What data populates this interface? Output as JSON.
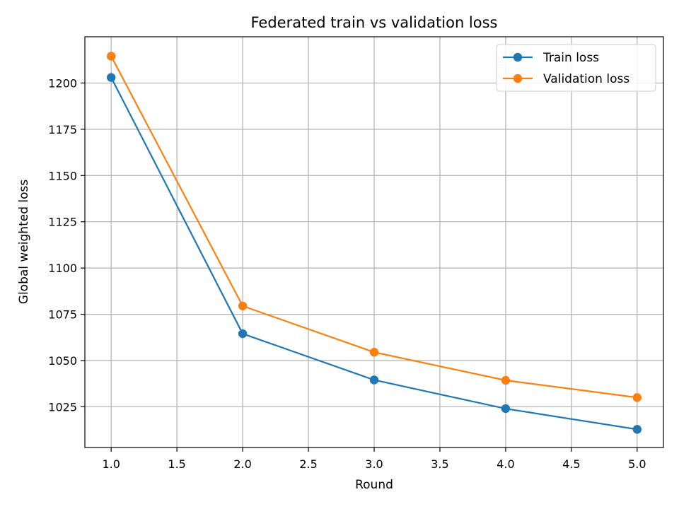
{
  "chart_data": {
    "type": "line",
    "title": "Federated train vs validation loss",
    "xlabel": "Round",
    "ylabel": "Global weighted loss",
    "x": [
      1,
      2,
      3,
      4,
      5
    ],
    "xlim": [
      0.8,
      5.2
    ],
    "ylim": [
      1003,
      1225
    ],
    "xticks": [
      "1.0",
      "1.5",
      "2.0",
      "2.5",
      "3.0",
      "3.5",
      "4.0",
      "4.5",
      "5.0"
    ],
    "yticks": [
      "1025",
      "1050",
      "1075",
      "1100",
      "1125",
      "1150",
      "1175",
      "1200"
    ],
    "grid": true,
    "legend_position": "top-right",
    "series": [
      {
        "name": "Train loss",
        "color": "#1f77b4",
        "values": [
          1203,
          1064.5,
          1039.5,
          1024,
          1012.8
        ]
      },
      {
        "name": "Validation loss",
        "color": "#ff7f0e",
        "values": [
          1214.5,
          1079.5,
          1054.5,
          1039.3,
          1030
        ]
      }
    ]
  }
}
